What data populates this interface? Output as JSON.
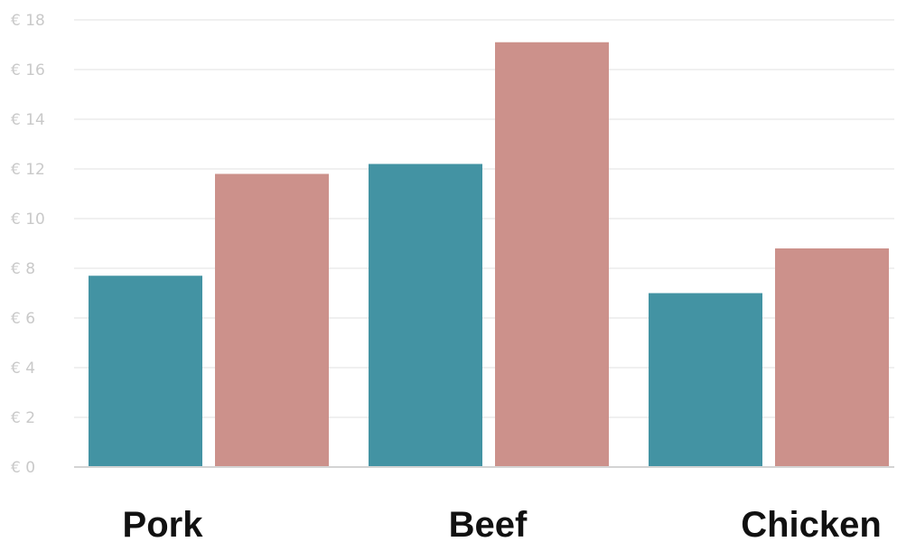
{
  "chart_data": {
    "type": "bar",
    "title": "",
    "xlabel": "",
    "ylabel": "",
    "categories": [
      "Pork",
      "Beef",
      "Chicken"
    ],
    "series": [
      {
        "values": [
          7.7,
          12.2,
          7.0
        ],
        "color": "#4393a3"
      },
      {
        "values": [
          11.8,
          17.1,
          8.8
        ],
        "color": "#cc918b"
      }
    ],
    "ylim": [
      0,
      18
    ],
    "yticks": [
      0,
      2,
      4,
      6,
      8,
      10,
      12,
      14,
      16,
      18
    ],
    "ytick_labels": [
      "€ 0",
      "€ 2",
      "€ 4",
      "€ 6",
      "€ 8",
      "€ 10",
      "€ 12",
      "€ 14",
      "€ 16",
      "€ 18"
    ],
    "grid": true,
    "legend": "none"
  }
}
